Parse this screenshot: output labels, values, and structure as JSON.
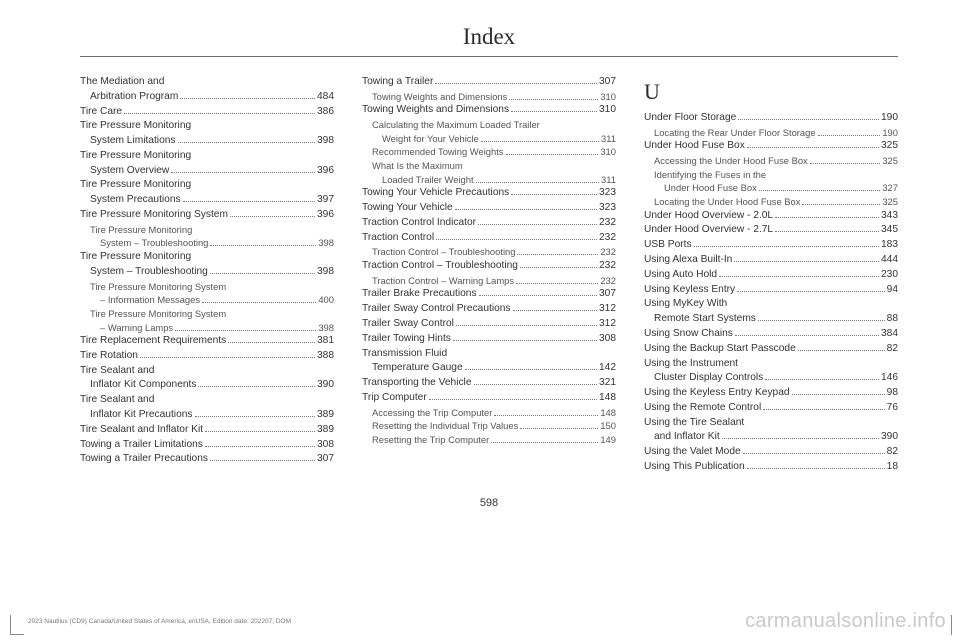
{
  "title": "Index",
  "page_number": "598",
  "footer": "2023 Nautilus (CD9) Canada/United States of America, enUSA, Edition date: 202207, DOM",
  "watermark": "carmanualsonline.info",
  "columns": [
    [
      {
        "t": "main",
        "label": "The Mediation and Arbitration Program",
        "pg": "484",
        "wrap": true
      },
      {
        "t": "main",
        "label": "Tire Care",
        "pg": "386"
      },
      {
        "t": "main",
        "label": "Tire Pressure Monitoring System Limitations",
        "pg": "398",
        "wrap": true
      },
      {
        "t": "main",
        "label": "Tire Pressure Monitoring System Overview",
        "pg": "396",
        "wrap": true
      },
      {
        "t": "main",
        "label": "Tire Pressure Monitoring System Precautions",
        "pg": "397",
        "wrap": true
      },
      {
        "t": "main",
        "label": "Tire Pressure Monitoring System",
        "pg": "396"
      },
      {
        "t": "sub",
        "label": "Tire Pressure Monitoring System – Troubleshooting",
        "pg": "398",
        "wrap": true
      },
      {
        "t": "main",
        "label": "Tire Pressure Monitoring System – Troubleshooting",
        "pg": "398",
        "wrap": true
      },
      {
        "t": "sub",
        "label": "Tire Pressure Monitoring System – Information Messages",
        "pg": "400",
        "wrap": true
      },
      {
        "t": "sub",
        "label": "Tire Pressure Monitoring System – Warning Lamps",
        "pg": "398",
        "wrap": true
      },
      {
        "t": "main",
        "label": "Tire Replacement Requirements",
        "pg": "381"
      },
      {
        "t": "main",
        "label": "Tire Rotation",
        "pg": "388"
      },
      {
        "t": "main",
        "label": "Tire Sealant and Inflator Kit Components",
        "pg": "390",
        "wrap": true
      },
      {
        "t": "main",
        "label": "Tire Sealant and Inflator Kit Precautions",
        "pg": "389",
        "wrap": true
      },
      {
        "t": "main",
        "label": "Tire Sealant and Inflator Kit",
        "pg": "389"
      },
      {
        "t": "main",
        "label": "Towing a Trailer Limitations",
        "pg": "308"
      },
      {
        "t": "main",
        "label": "Towing a Trailer Precautions",
        "pg": "307"
      }
    ],
    [
      {
        "t": "main",
        "label": "Towing a Trailer",
        "pg": "307"
      },
      {
        "t": "sub",
        "label": "Towing Weights and Dimensions",
        "pg": "310"
      },
      {
        "t": "main",
        "label": "Towing Weights and Dimensions",
        "pg": "310"
      },
      {
        "t": "sub",
        "label": "Calculating the Maximum Loaded Trailer Weight for Your Vehicle",
        "pg": "311",
        "wrap": true
      },
      {
        "t": "sub",
        "label": "Recommended Towing Weights",
        "pg": "310"
      },
      {
        "t": "sub",
        "label": "What Is the Maximum Loaded Trailer Weight",
        "pg": "311",
        "wrap": true
      },
      {
        "t": "main",
        "label": "Towing Your Vehicle Precautions",
        "pg": "323"
      },
      {
        "t": "main",
        "label": "Towing Your Vehicle",
        "pg": "323"
      },
      {
        "t": "main",
        "label": "Traction Control Indicator",
        "pg": "232"
      },
      {
        "t": "main",
        "label": "Traction Control",
        "pg": "232"
      },
      {
        "t": "sub",
        "label": "Traction Control – Troubleshooting",
        "pg": "232"
      },
      {
        "t": "main",
        "label": "Traction Control – Troubleshooting",
        "pg": "232"
      },
      {
        "t": "sub",
        "label": "Traction Control – Warning Lamps",
        "pg": "232"
      },
      {
        "t": "main",
        "label": "Trailer Brake Precautions",
        "pg": "307"
      },
      {
        "t": "main",
        "label": "Trailer Sway Control Precautions",
        "pg": "312"
      },
      {
        "t": "main",
        "label": "Trailer Sway Control",
        "pg": "312"
      },
      {
        "t": "main",
        "label": "Trailer Towing Hints",
        "pg": "308"
      },
      {
        "t": "main",
        "label": "Transmission Fluid Temperature Gauge",
        "pg": "142",
        "wrap": true
      },
      {
        "t": "main",
        "label": "Transporting the Vehicle",
        "pg": "321"
      },
      {
        "t": "main",
        "label": "Trip Computer",
        "pg": "148"
      },
      {
        "t": "sub",
        "label": "Accessing the Trip Computer",
        "pg": "148"
      },
      {
        "t": "sub",
        "label": "Resetting the Individual Trip Values",
        "pg": "150"
      },
      {
        "t": "sub",
        "label": "Resetting the Trip Computer",
        "pg": "149"
      }
    ],
    [
      {
        "t": "letter",
        "label": "U"
      },
      {
        "t": "main",
        "label": "Under Floor Storage",
        "pg": "190"
      },
      {
        "t": "sub",
        "label": "Locating the Rear Under Floor Storage",
        "pg": "190"
      },
      {
        "t": "main",
        "label": "Under Hood Fuse Box",
        "pg": "325"
      },
      {
        "t": "sub",
        "label": "Accessing the Under Hood Fuse Box",
        "pg": "325"
      },
      {
        "t": "sub",
        "label": "Identifying the Fuses in the Under Hood Fuse Box",
        "pg": "327",
        "wrap": true
      },
      {
        "t": "sub",
        "label": "Locating the Under Hood Fuse Box",
        "pg": "325"
      },
      {
        "t": "main",
        "label": "Under Hood Overview - 2.0L",
        "pg": "343"
      },
      {
        "t": "main",
        "label": "Under Hood Overview - 2.7L",
        "pg": "345"
      },
      {
        "t": "main",
        "label": "USB Ports",
        "pg": "183"
      },
      {
        "t": "main",
        "label": "Using Alexa Built-In",
        "pg": "444"
      },
      {
        "t": "main",
        "label": "Using Auto Hold",
        "pg": "230"
      },
      {
        "t": "main",
        "label": "Using Keyless Entry",
        "pg": "94"
      },
      {
        "t": "main",
        "label": "Using MyKey With Remote Start Systems",
        "pg": "88",
        "wrap": true
      },
      {
        "t": "main",
        "label": "Using Snow Chains",
        "pg": "384"
      },
      {
        "t": "main",
        "label": "Using the Backup Start Passcode",
        "pg": "82"
      },
      {
        "t": "main",
        "label": "Using the Instrument Cluster Display Controls",
        "pg": "146",
        "wrap": true
      },
      {
        "t": "main",
        "label": "Using the Keyless Entry Keypad",
        "pg": "98"
      },
      {
        "t": "main",
        "label": "Using the Remote Control",
        "pg": "76"
      },
      {
        "t": "main",
        "label": "Using the Tire Sealant and Inflator Kit",
        "pg": "390",
        "wrap": true
      },
      {
        "t": "main",
        "label": "Using the Valet Mode",
        "pg": "82"
      },
      {
        "t": "main",
        "label": "Using This Publication",
        "pg": "18"
      }
    ]
  ]
}
